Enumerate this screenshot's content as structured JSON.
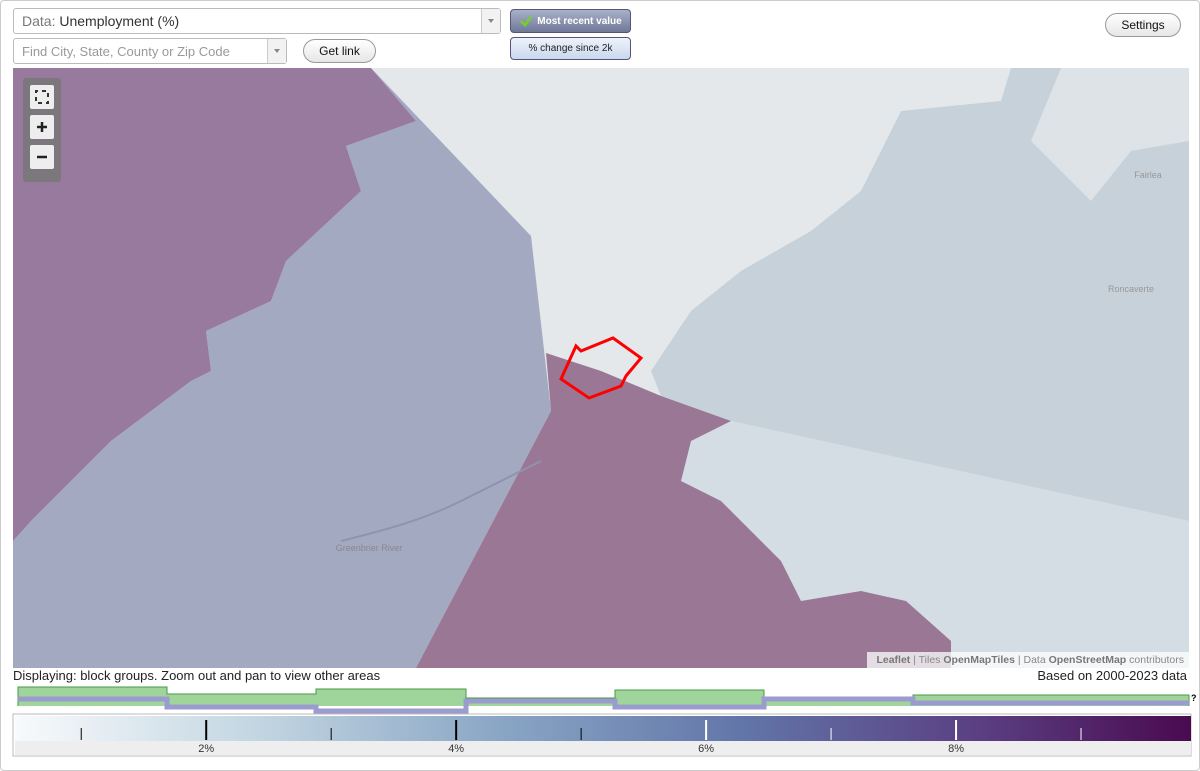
{
  "controls": {
    "data_prefix": "Data:",
    "data_value": "Unemployment (%)",
    "search_placeholder": "Find City, State, County or Zip Code",
    "get_link": "Get link",
    "mode_recent": "Most recent value",
    "mode_change": "% change since 2k",
    "settings": "Settings"
  },
  "map": {
    "places": [
      "Fairlea",
      "Roncaverte",
      "Greenbrier River"
    ],
    "attribution": {
      "leaflet": "Leaflet",
      "tiles": "Tiles",
      "tiles_source": "OpenMapTiles",
      "data": "Data",
      "data_source": "OpenStreetMap",
      "contributors": "contributors"
    }
  },
  "status": {
    "displaying": "Displaying: block groups. Zoom out and pan to view other areas",
    "based_on": "Based on 2000-2023 data",
    "help": "?"
  },
  "legend": {
    "lim": [
      0.47,
      9.88
    ],
    "ticks": [
      {
        "value": 2,
        "label": "2%"
      },
      {
        "value": 4,
        "label": "4%"
      },
      {
        "value": 6,
        "label": "6%"
      },
      {
        "value": 8,
        "label": "8%"
      }
    ],
    "minor_ticks": [
      1,
      3,
      5,
      7,
      9
    ]
  }
}
